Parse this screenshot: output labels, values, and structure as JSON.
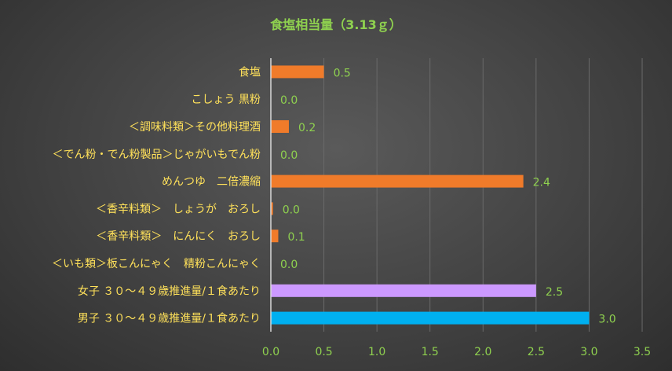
{
  "chart_data": {
    "type": "bar",
    "orientation": "horizontal",
    "title": "食塩相当量（3.13ｇ）",
    "categories": [
      "食塩",
      "こしょう 黒粉",
      "＜調味料類＞その他料理酒",
      "＜でん粉・でん粉製品＞じゃがいもでん粉",
      "めんつゆ　二倍濃縮",
      "＜香辛料類＞　しょうが　おろし",
      "＜香辛料類＞　にんにく　おろし",
      "＜いも類＞板こんにゃく　精粉こんにゃく",
      "女子 ３０～４９歳推進量/１食あたり",
      "男子 ３０～４９歳推進量/１食あたり"
    ],
    "values": [
      0.5,
      0.0,
      0.17,
      0.0,
      2.38,
      0.02,
      0.07,
      0.0,
      2.5,
      3.0
    ],
    "data_labels": [
      "0.5",
      "0.0",
      "0.2",
      "0.0",
      "2.4",
      "0.0",
      "0.1",
      "0.0",
      "2.5",
      "3.0"
    ],
    "bar_colors": [
      "#f07b2a",
      "#f07b2a",
      "#f07b2a",
      "#f07b2a",
      "#f07b2a",
      "#f07b2a",
      "#f07b2a",
      "#f07b2a",
      "#cc99ff",
      "#00b0f0"
    ],
    "x_ticks": [
      "0.0",
      "0.5",
      "1.0",
      "1.5",
      "2.0",
      "2.5",
      "3.0",
      "3.5"
    ],
    "xlim": [
      0,
      3.5
    ],
    "grid": true,
    "legend": "none"
  }
}
